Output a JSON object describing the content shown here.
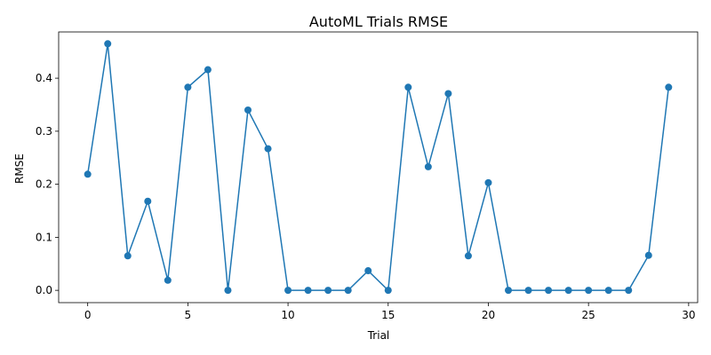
{
  "chart_data": {
    "type": "line",
    "title": "AutoML Trials RMSE",
    "xlabel": "Trial",
    "ylabel": "RMSE",
    "xlim": [
      -1.45,
      30.45
    ],
    "ylim": [
      -0.0232,
      0.4872
    ],
    "xticks": [
      0,
      5,
      10,
      15,
      20,
      25,
      30
    ],
    "yticks": [
      0.0,
      0.1,
      0.2,
      0.3,
      0.4
    ],
    "ytick_labels": [
      "0.0",
      "0.1",
      "0.2",
      "0.3",
      "0.4"
    ],
    "grid": false,
    "marker": "circle",
    "color": "#1f77b4",
    "series": [
      {
        "x": [
          0,
          1,
          2,
          3,
          4,
          5,
          6,
          7,
          8,
          9,
          10,
          11,
          12,
          13,
          14,
          15,
          16,
          17,
          18,
          19,
          20,
          21,
          22,
          23,
          24,
          25,
          26,
          27,
          28,
          29
        ],
        "values": [
          0.219,
          0.465,
          0.065,
          0.168,
          0.019,
          0.383,
          0.416,
          0.0,
          0.34,
          0.267,
          0.0,
          0.0,
          0.0,
          0.0,
          0.037,
          0.0,
          0.383,
          0.233,
          0.371,
          0.065,
          0.203,
          0.0,
          0.0,
          0.0,
          0.0,
          0.0,
          0.0,
          0.0,
          0.066,
          0.383
        ]
      }
    ]
  }
}
